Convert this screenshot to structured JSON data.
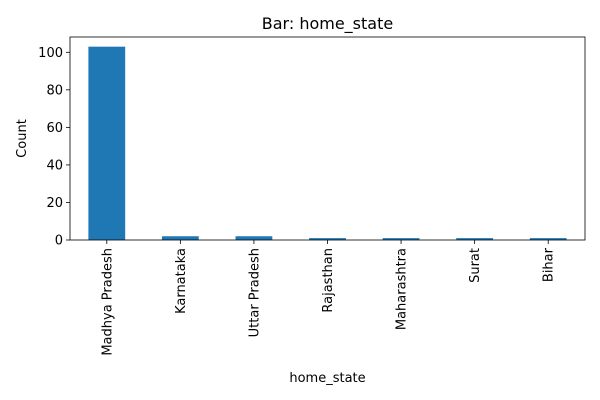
{
  "chart_data": {
    "type": "bar",
    "title": "Bar: home_state",
    "xlabel": "home_state",
    "ylabel": "Count",
    "categories": [
      "Madhya Pradesh",
      "Karnataka",
      "Uttar Pradesh",
      "Rajasthan",
      "Maharashtra",
      "Surat",
      "Bihar"
    ],
    "values": [
      103,
      2,
      2,
      1,
      1,
      1,
      1
    ],
    "ylim": [
      0,
      108.15
    ],
    "yticks": [
      0,
      20,
      40,
      60,
      80,
      100
    ],
    "grid": false,
    "bar_color": "#1f77b4"
  }
}
